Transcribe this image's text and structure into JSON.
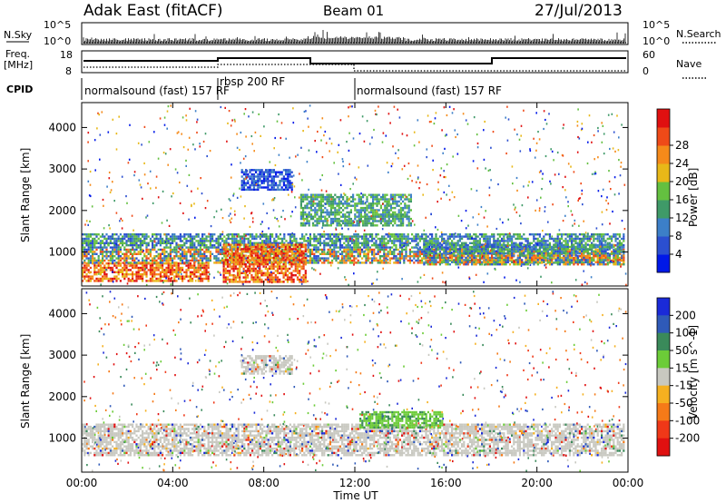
{
  "header": {
    "title": "Adak East (fitACF)",
    "beam": "Beam 01",
    "date": "27/Jul/2013"
  },
  "aux": {
    "nsky_label": "N.Sky",
    "nsky_ticks": [
      "10^5",
      "10^0"
    ],
    "nsearch_label": "N.Search",
    "nsearch_ticks": [
      "10^5",
      "10^0"
    ],
    "freq_label": "Freq.",
    "freq_unit": "[MHz]",
    "freq_ticks": [
      "18",
      "8"
    ],
    "nave_label": "Nave",
    "nave_ticks": [
      "60",
      "0"
    ],
    "cpid_label": "CPID",
    "cpid_segments": [
      {
        "label": "normalsound (fast) 157 RF",
        "start": 0,
        "end": 6
      },
      {
        "label": "rbsp 200 RF",
        "start": 6,
        "end": 12
      },
      {
        "label": "normalsound (fast) 157 RF",
        "start": 12,
        "end": 24
      }
    ]
  },
  "x_axis": {
    "title": "Time UT",
    "ticks": [
      "00:00",
      "04:00",
      "08:00",
      "12:00",
      "16:00",
      "20:00",
      "00:00"
    ]
  },
  "chart_data": [
    {
      "type": "heatmap",
      "name": "power-panel",
      "xlabel": "Time UT",
      "ylabel": "Slant Range [km]",
      "xlim": [
        0,
        24
      ],
      "ylim": [
        180,
        4600
      ],
      "yticks": [
        "1000",
        "2000",
        "3000",
        "4000"
      ],
      "colorbar": {
        "label": "Power [dB]",
        "ticks": [
          "4",
          "8",
          "12",
          "16",
          "20",
          "24",
          "28"
        ],
        "colors": [
          "#0018e8",
          "#2b4fd0",
          "#3c7fc8",
          "#3f9a68",
          "#64c040",
          "#e8b818",
          "#f58a1a",
          "#ef4a18",
          "#e01010"
        ]
      },
      "regions": [
        {
          "t": [
            0,
            5.6
          ],
          "r": [
            300,
            750
          ],
          "level": "high"
        },
        {
          "t": [
            0,
            23.8
          ],
          "r": [
            750,
            1450
          ],
          "level": "medium"
        },
        {
          "t": [
            6.2,
            9.8
          ],
          "r": [
            300,
            1200
          ],
          "level": "high"
        },
        {
          "t": [
            7.0,
            9.2
          ],
          "r": [
            2500,
            3000
          ],
          "level": "low"
        },
        {
          "t": [
            9.6,
            14.5
          ],
          "r": [
            1650,
            2400
          ],
          "level": "medium-low"
        },
        {
          "t": [
            15,
            23.8
          ],
          "r": [
            700,
            1200
          ],
          "level": "medium"
        }
      ]
    },
    {
      "type": "heatmap",
      "name": "velocity-panel",
      "xlabel": "Time UT",
      "ylabel": "Slant Range [km]",
      "xlim": [
        0,
        24
      ],
      "ylim": [
        180,
        4600
      ],
      "yticks": [
        "1000",
        "2000",
        "3000",
        "4000"
      ],
      "colorbar": {
        "label": "Velocity [m s^-1]",
        "ticks": [
          "200",
          "100",
          "50",
          "15",
          "-15",
          "-50",
          "-100",
          "-200"
        ],
        "colors": [
          "#1a2ad8",
          "#2f5ab8",
          "#3a8a5a",
          "#6ccc38",
          "#c8c8c0",
          "#f5b020",
          "#f57a18",
          "#ef3818",
          "#e01010"
        ]
      },
      "regions": [
        {
          "t": [
            0,
            23.8
          ],
          "r": [
            600,
            1350
          ],
          "level": "ground-scatter"
        },
        {
          "t": [
            7.0,
            9.2
          ],
          "r": [
            2550,
            3000
          ],
          "level": "ground-scatter"
        },
        {
          "t": [
            12.2,
            15.8
          ],
          "r": [
            1250,
            1650
          ],
          "level": "positive-low"
        }
      ]
    }
  ]
}
